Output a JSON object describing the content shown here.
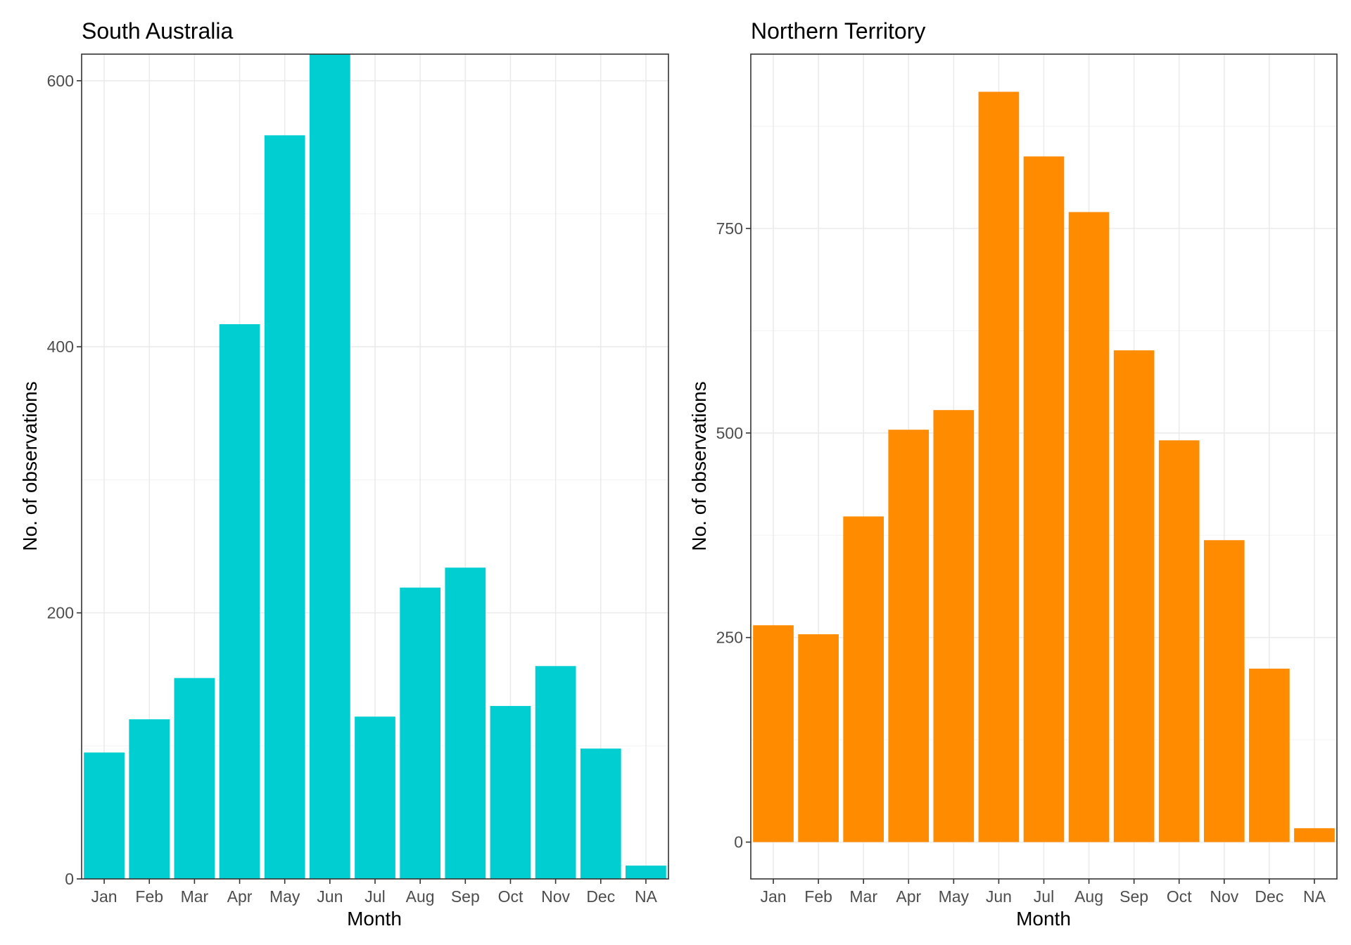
{
  "chart_data": [
    {
      "type": "bar",
      "title": "South Australia",
      "xlabel": "Month",
      "ylabel": "No. of observations",
      "categories": [
        "Jan",
        "Feb",
        "Mar",
        "Apr",
        "May",
        "Jun",
        "Jul",
        "Aug",
        "Sep",
        "Oct",
        "Nov",
        "Dec",
        "NA"
      ],
      "values": [
        95,
        120,
        151,
        417,
        559,
        620,
        122,
        219,
        234,
        130,
        160,
        98,
        10
      ],
      "ylim": [
        0,
        620
      ],
      "yticks": [
        0,
        200,
        400,
        600
      ],
      "grid": true,
      "legend": "none",
      "color": "#00CED1"
    },
    {
      "type": "bar",
      "title": "Northern Territory",
      "xlabel": "Month",
      "ylabel": "No. of observations",
      "categories": [
        "Jan",
        "Feb",
        "Mar",
        "Apr",
        "May",
        "Jun",
        "Jul",
        "Aug",
        "Sep",
        "Oct",
        "Nov",
        "Dec",
        "NA"
      ],
      "values": [
        265,
        254,
        398,
        504,
        528,
        917,
        838,
        770,
        601,
        491,
        369,
        212,
        17
      ],
      "ylim": [
        -45,
        963
      ],
      "yticks": [
        0,
        250,
        500,
        750
      ],
      "grid": true,
      "legend": "none",
      "color": "#FF8C00"
    }
  ]
}
